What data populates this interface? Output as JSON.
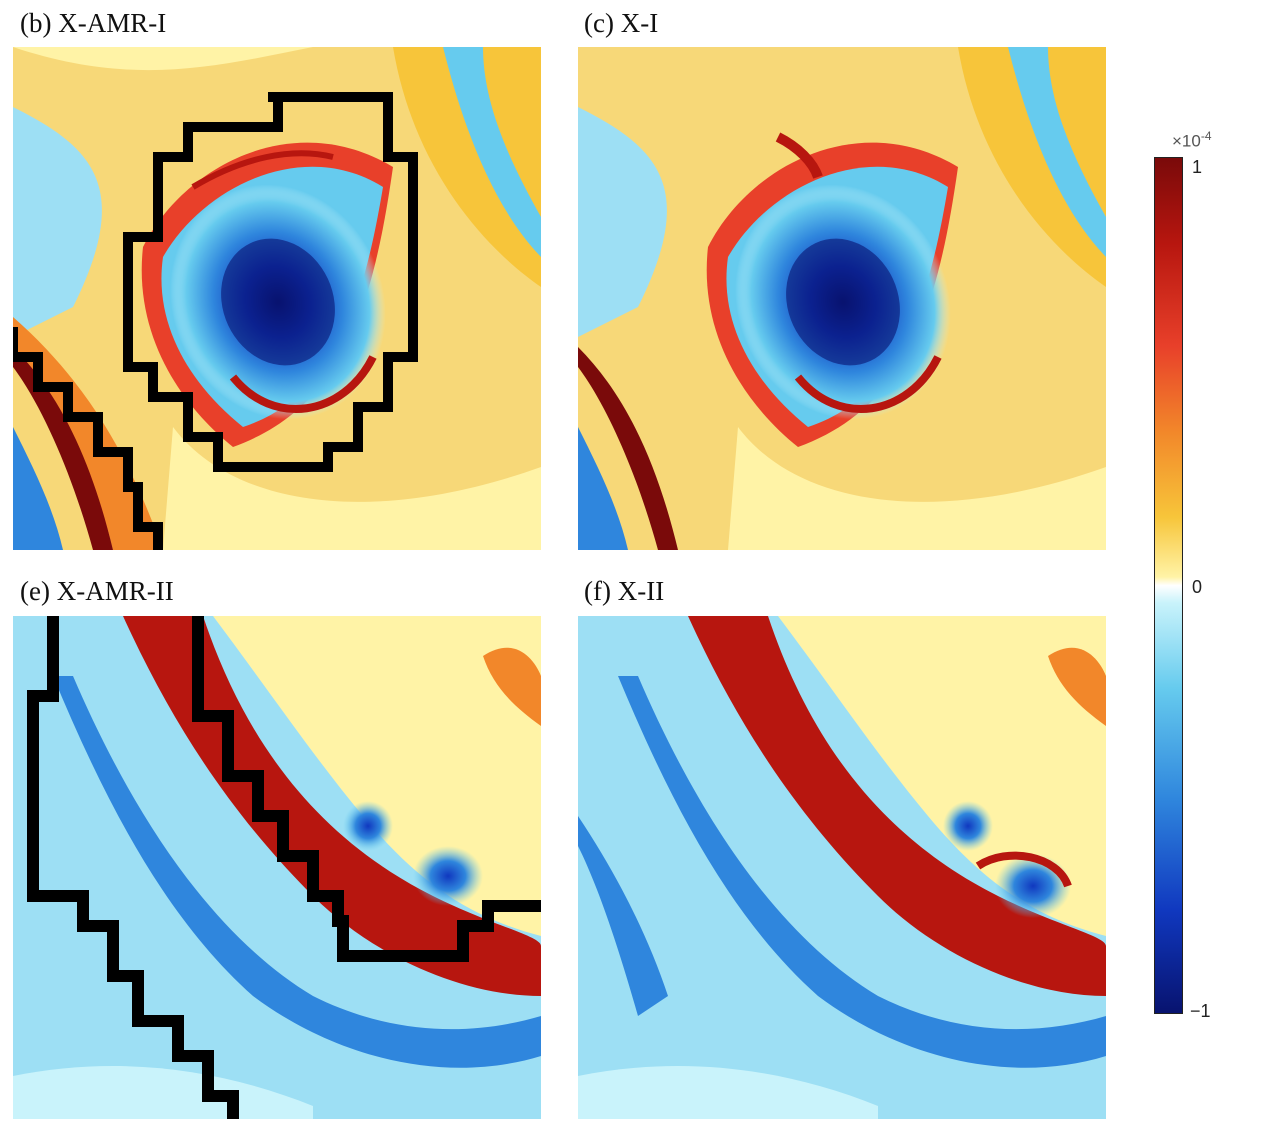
{
  "panels": [
    {
      "id": "b",
      "label": "(b) X-AMR-I"
    },
    {
      "id": "c",
      "label": "(c) X-I"
    },
    {
      "id": "e",
      "label": "(e) X-AMR-II"
    },
    {
      "id": "f",
      "label": "(f) X-II"
    }
  ],
  "colorbar": {
    "multiplier_base": "×10",
    "multiplier_exp": "-4",
    "tick_max": "1",
    "tick_mid": "0",
    "tick_min": "−1",
    "colors": [
      "#7a0a0a",
      "#b7160f",
      "#e8402a",
      "#f2872a",
      "#f7c53a",
      "#fff3a6",
      "#ffffff",
      "#c9f3fb",
      "#66cbee",
      "#2f86dd",
      "#1038bf",
      "#08136f"
    ]
  },
  "chart_data": {
    "type": "heatmap",
    "value_range": [
      -1,
      1
    ],
    "value_scale": "×10^-4",
    "panels": [
      "(b) X-AMR-I",
      "(c) X-I",
      "(e) X-AMR-II",
      "(f) X-II"
    ]
  }
}
